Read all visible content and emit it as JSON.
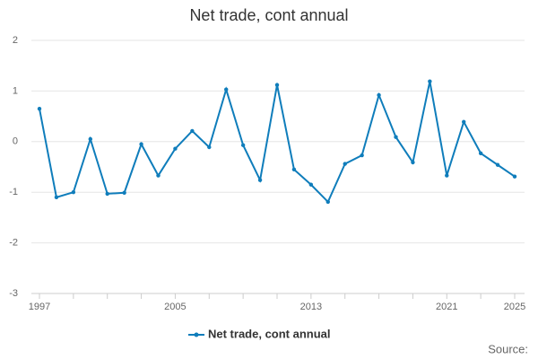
{
  "chart_data": {
    "type": "line",
    "title": "Net trade, cont annual",
    "x": [
      1997,
      1998,
      1999,
      2000,
      2001,
      2002,
      2003,
      2004,
      2005,
      2006,
      2007,
      2008,
      2009,
      2010,
      2011,
      2012,
      2013,
      2014,
      2015,
      2016,
      2017,
      2018,
      2019,
      2020,
      2021,
      2022,
      2023,
      2024,
      2025
    ],
    "series": [
      {
        "name": "Net trade, cont annual",
        "color": "#0f7dbb",
        "values": [
          0.65,
          -1.1,
          -1.0,
          0.05,
          -1.03,
          -1.01,
          -0.05,
          -0.67,
          -0.14,
          0.21,
          -0.11,
          1.03,
          -0.07,
          -0.76,
          1.12,
          -0.55,
          -0.85,
          -1.19,
          -0.44,
          -0.27,
          0.92,
          0.09,
          -0.41,
          1.19,
          -0.67,
          0.39,
          -0.23,
          -0.46,
          -0.69
        ]
      }
    ],
    "xlim": [
      1997,
      2025
    ],
    "xticks": [
      1997,
      2005,
      2013,
      2021,
      2025
    ],
    "xminorticks": [
      1999,
      2001,
      2003,
      2007,
      2009,
      2011,
      2015,
      2017,
      2019,
      2023
    ],
    "ylim": [
      -3,
      2
    ],
    "yticks": [
      -3,
      -2,
      -1,
      0,
      1,
      2
    ],
    "grid": true,
    "legend": "bottom",
    "source": "Source:"
  }
}
